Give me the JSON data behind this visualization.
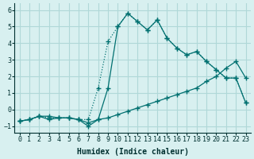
{
  "xlabel": "Humidex (Indice chaleur)",
  "ylabel": "",
  "bg_color": "#d8f0f0",
  "grid_color": "#b0d8d8",
  "line_color": "#007070",
  "xlim": [
    -0.5,
    23.5
  ],
  "ylim": [
    -1.4,
    6.4
  ],
  "xticks": [
    0,
    1,
    2,
    3,
    4,
    5,
    6,
    7,
    8,
    9,
    10,
    11,
    12,
    13,
    14,
    15,
    16,
    17,
    18,
    19,
    20,
    21,
    22,
    23
  ],
  "yticks": [
    -1,
    0,
    1,
    2,
    3,
    4,
    5,
    6
  ],
  "line1_x": [
    0,
    1,
    2,
    3,
    4,
    5,
    6,
    7,
    8,
    9,
    10,
    11,
    12,
    13,
    14,
    15,
    16,
    17,
    18,
    19,
    20,
    21,
    22,
    23
  ],
  "line1_y": [
    -0.7,
    -0.6,
    -0.4,
    -0.4,
    -0.5,
    -0.5,
    -0.6,
    -0.8,
    -0.6,
    -0.5,
    -0.3,
    -0.1,
    0.1,
    0.3,
    0.5,
    0.7,
    0.9,
    1.1,
    1.3,
    1.7,
    2.0,
    2.5,
    2.9,
    1.9
  ],
  "line2_x": [
    0,
    1,
    2,
    3,
    4,
    5,
    6,
    7,
    8,
    9,
    10,
    11,
    12,
    13,
    14,
    15,
    16,
    17,
    18,
    19,
    20,
    21,
    22,
    23
  ],
  "line2_y": [
    -0.7,
    -0.6,
    -0.4,
    -0.6,
    -0.5,
    -0.5,
    -0.6,
    -1.0,
    -0.6,
    1.3,
    5.0,
    5.8,
    5.3,
    4.8,
    5.4,
    4.3,
    3.7,
    3.3,
    3.5,
    2.9,
    2.4,
    1.9,
    1.9,
    0.4
  ],
  "line3_x": [
    0,
    1,
    2,
    3,
    4,
    5,
    6,
    7,
    8,
    9,
    10,
    11,
    12,
    13,
    14,
    15,
    16,
    17,
    18,
    19,
    20,
    21,
    22,
    23
  ],
  "line3_y": [
    -0.7,
    -0.6,
    -0.4,
    -0.5,
    -0.5,
    -0.5,
    -0.6,
    -0.6,
    1.3,
    4.1,
    5.0,
    5.8,
    5.3,
    4.8,
    5.4,
    4.3,
    3.7,
    3.3,
    3.5,
    2.9,
    2.4,
    1.9,
    1.9,
    0.4
  ]
}
